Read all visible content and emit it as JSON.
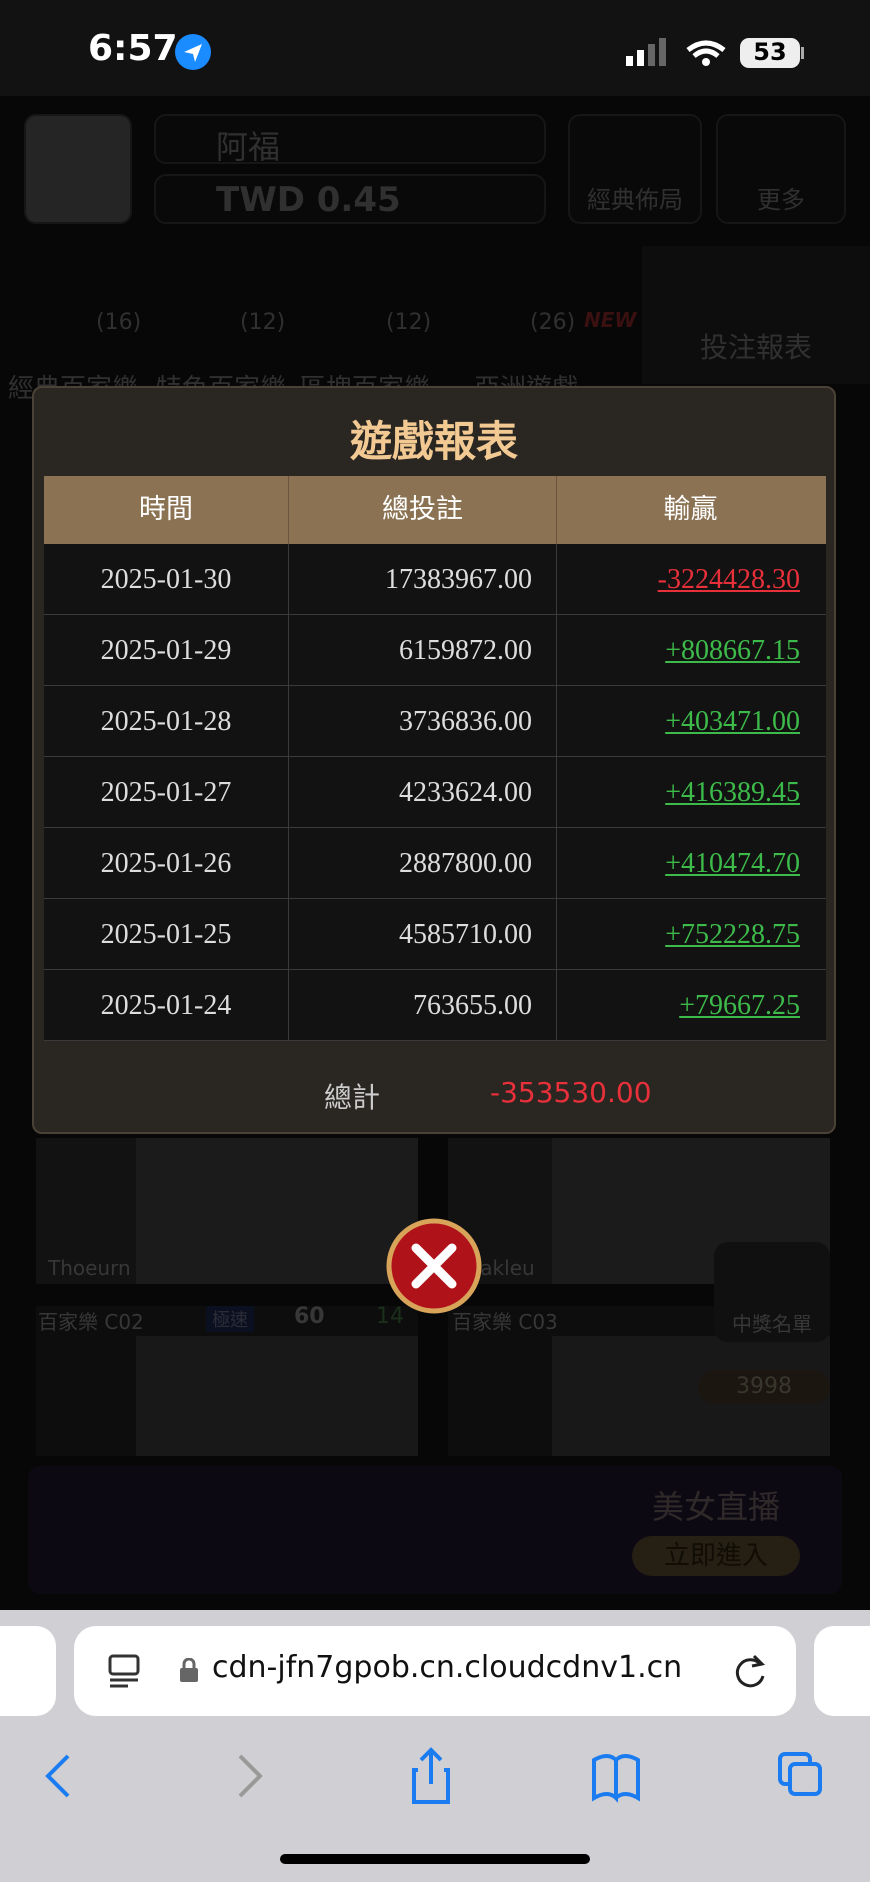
{
  "status_bar": {
    "time": "6:57",
    "battery": "53"
  },
  "header": {
    "user_name": "阿福",
    "balance": "TWD 0.45",
    "buttons": [
      "經典佈局",
      "更多"
    ]
  },
  "side_panel": {
    "label": "投注報表"
  },
  "tabs": [
    {
      "count": "(16)",
      "label": "經典百家樂"
    },
    {
      "count": "(12)",
      "label": "特色百家樂"
    },
    {
      "count": "(12)",
      "label": "區塊百家樂"
    },
    {
      "count": "(26)",
      "label": "亞洲遊戲"
    }
  ],
  "new_badge": "NEW",
  "modal": {
    "title": "遊戲報表",
    "table": {
      "columns": [
        "時間",
        "總投註",
        "輸贏"
      ],
      "rows": [
        [
          "2025-01-30",
          "17383967.00",
          "-3224428.30"
        ],
        [
          "2025-01-29",
          "6159872.00",
          "+808667.15"
        ],
        [
          "2025-01-28",
          "3736836.00",
          "+403471.00"
        ],
        [
          "2025-01-27",
          "4233624.00",
          "+416389.45"
        ],
        [
          "2025-01-26",
          "2887800.00",
          "+410474.70"
        ],
        [
          "2025-01-25",
          "4585710.00",
          "+752228.75"
        ],
        [
          "2025-01-24",
          "763655.00",
          "+79667.25"
        ]
      ]
    },
    "total": {
      "label": "總計",
      "value": "-353530.00"
    }
  },
  "games": [
    {
      "dealer": "Thoeurn"
    },
    {
      "dealer": "eakleu"
    },
    {
      "name": "百家樂 C02",
      "badge": "極速",
      "players": "60",
      "count": "14"
    },
    {
      "name": "百家樂 C03",
      "players": "3998"
    }
  ],
  "winners_button": "中獎名單",
  "banner": {
    "title": "美女直播",
    "button": "立即進入"
  },
  "browser": {
    "url": "cdn-jfn7gpob.cn.cloudcdnv1.cn"
  }
}
